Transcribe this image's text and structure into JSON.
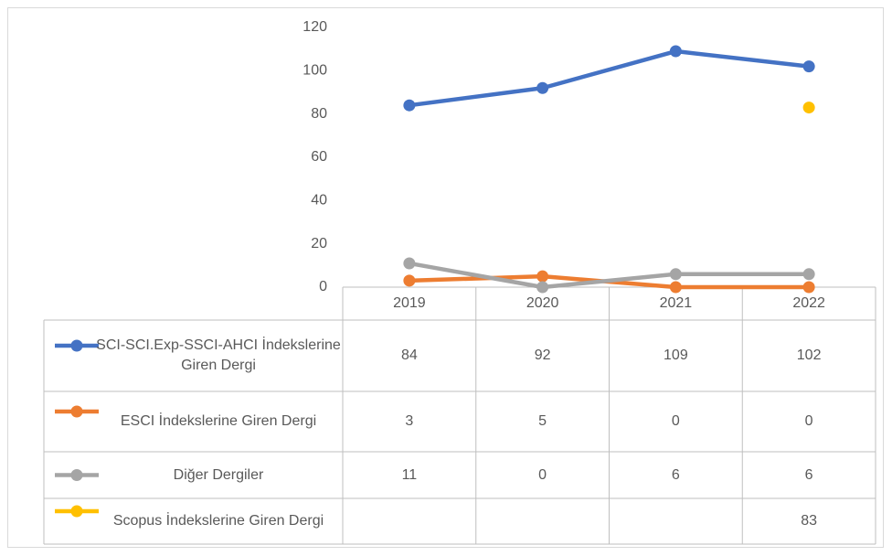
{
  "chart_data": {
    "type": "line",
    "categories": [
      "2019",
      "2020",
      "2021",
      "2022"
    ],
    "series": [
      {
        "name": "SCI-SCI.Exp-SSCI-AHCI İndekslerine Giren Dergi",
        "color": "#4472c4",
        "values": [
          84,
          92,
          109,
          102
        ]
      },
      {
        "name": "ESCI İndekslerine Giren Dergi",
        "color": "#ed7d31",
        "values": [
          3,
          5,
          0,
          0
        ]
      },
      {
        "name": "Diğer Dergiler",
        "color": "#a5a5a5",
        "values": [
          11,
          0,
          6,
          6
        ]
      },
      {
        "name": "Scopus İndekslerine Giren Dergi",
        "color": "#ffc000",
        "values": [
          null,
          null,
          null,
          83
        ]
      }
    ],
    "ylim": [
      0,
      120
    ],
    "yticks": [
      0,
      20,
      40,
      60,
      80,
      100,
      120
    ],
    "grid": false,
    "legend": "data-table"
  }
}
